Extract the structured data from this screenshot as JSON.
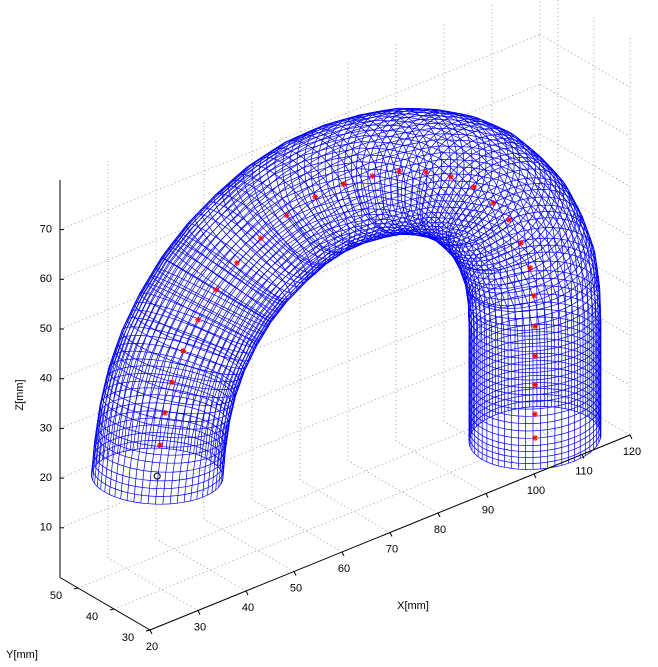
{
  "chart_data": {
    "type": "mesh3d",
    "xlabel": "X[mm]",
    "ylabel": "Y[mm]",
    "zlabel": "Z[mm]",
    "xlim": [
      20,
      120
    ],
    "ylim": [
      30,
      55
    ],
    "zlim": [
      0,
      80
    ],
    "xticks": [
      20,
      30,
      40,
      50,
      60,
      70,
      80,
      90,
      100,
      110,
      120
    ],
    "yticks": [
      30,
      40,
      50
    ],
    "zticks": [
      10,
      20,
      30,
      40,
      50,
      60,
      70
    ],
    "grid": true,
    "tube_radius": 11,
    "tube_color": "#0000ff",
    "start_point": {
      "x": 29,
      "y": 40,
      "z": 23.2,
      "color": "#000000"
    },
    "series": [
      {
        "color": "#ff0000",
        "x": [
          29.6,
          30.6,
          32.1,
          34.4,
          37.5,
          41.3,
          45.6,
          50.6,
          56.0,
          61.9,
          67.9,
          73.8,
          79.4,
          85.0,
          90.2,
          95.0,
          99.0,
          102.3,
          104.8,
          106.7,
          107.5,
          107.7,
          107.7,
          107.7,
          107.7,
          107.7
        ],
        "y": [
          40,
          40,
          40,
          40,
          40,
          40,
          40,
          40,
          40,
          40,
          40,
          40,
          40,
          40,
          40,
          40,
          40,
          40,
          40,
          40,
          40,
          40,
          40,
          40,
          40,
          40
        ],
        "z": [
          29.2,
          35.3,
          40.9,
          46.3,
          51.3,
          55.9,
          59.6,
          62.6,
          65.1,
          66.5,
          66.7,
          66.0,
          64.8,
          62.4,
          59.4,
          55.5,
          50.7,
          46.0,
          40.4,
          34.6,
          28.7,
          22.5,
          16.5,
          10.7,
          4.8,
          0
        ]
      }
    ]
  }
}
